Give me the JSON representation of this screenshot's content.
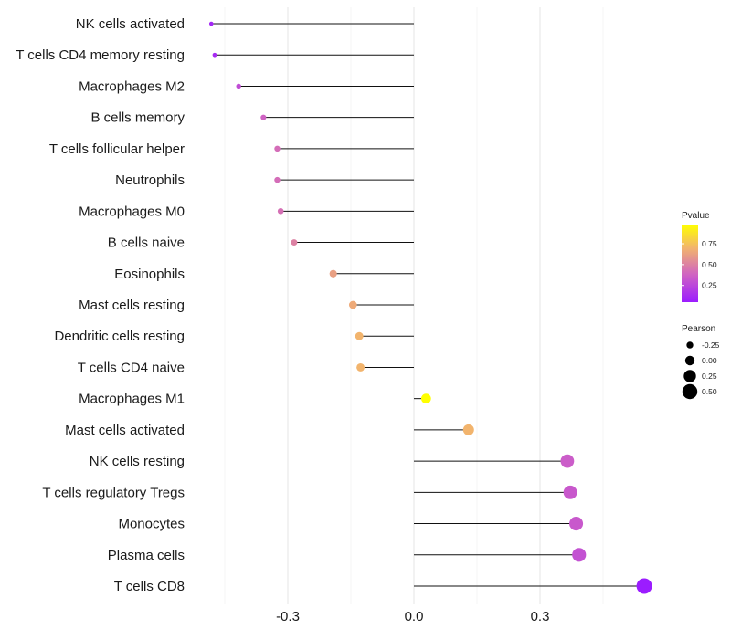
{
  "chart_data": {
    "type": "lollipop",
    "categories": [
      "NK cells activated",
      "T cells CD4 memory resting",
      "Macrophages M2",
      "B cells memory",
      "T cells follicular helper",
      "Neutrophils",
      "Macrophages M0",
      "B cells naive",
      "Eosinophils",
      "Mast cells resting",
      "Dendritic cells resting",
      "T cells CD4 naive",
      "Macrophages M1",
      "Mast cells activated",
      "NK cells resting",
      "T cells regulatory  Tregs ",
      "Monocytes",
      "Plasma cells",
      "T cells CD8"
    ],
    "pearson": [
      -0.482,
      -0.474,
      -0.417,
      -0.358,
      -0.325,
      -0.325,
      -0.317,
      -0.285,
      -0.192,
      -0.145,
      -0.13,
      -0.127,
      0.029,
      0.13,
      0.365,
      0.372,
      0.386,
      0.393,
      0.548
    ],
    "pvalue": [
      0.1,
      0.12,
      0.28,
      0.38,
      0.42,
      0.42,
      0.43,
      0.5,
      0.62,
      0.66,
      0.7,
      0.7,
      0.98,
      0.7,
      0.35,
      0.33,
      0.33,
      0.3,
      0.05
    ],
    "xlim": [
      -0.52,
      0.58
    ],
    "x_ticks": [
      -0.3,
      0.0,
      0.3
    ],
    "x_tick_labels": [
      "-0.3",
      "0.0",
      "0.3"
    ],
    "grid": true,
    "legend_pvalue": {
      "title": "Pvalue",
      "ticks": [
        0.25,
        0.5,
        0.75
      ],
      "tick_labels": [
        "0.25",
        "0.50",
        "0.75"
      ],
      "range": [
        0.05,
        0.98
      ],
      "colors": [
        "#9b1cff",
        "#cf62c4",
        "#f2b46d",
        "#ffff00"
      ]
    },
    "legend_pearson": {
      "title": "Pearson",
      "values": [
        -0.25,
        0.0,
        0.25,
        0.5
      ],
      "labels": [
        "-0.25",
        "0.00",
        "0.25",
        "0.50"
      ]
    }
  }
}
